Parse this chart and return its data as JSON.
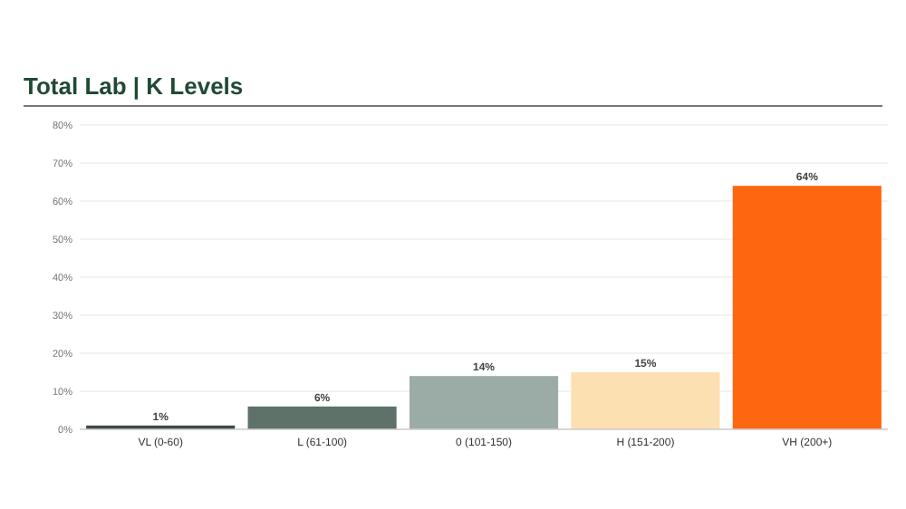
{
  "chart_data": {
    "type": "bar",
    "title": "Total Lab | K Levels",
    "categories": [
      "VL (0-60)",
      "L (61-100)",
      "0 (101-150)",
      "H (151-200)",
      "VH (200+)"
    ],
    "values": [
      1,
      6,
      14,
      15,
      64
    ],
    "colors": [
      "#3f4a45",
      "#5e7269",
      "#9aaca5",
      "#fde0b2",
      "#ff6610"
    ],
    "value_labels": [
      "1%",
      "6%",
      "14%",
      "15%",
      "64%"
    ],
    "ylim": [
      0,
      80
    ],
    "yticks": [
      {
        "value": 0,
        "label": "0%"
      },
      {
        "value": 10,
        "label": "10%"
      },
      {
        "value": 20,
        "label": "20%"
      },
      {
        "value": 30,
        "label": "30%"
      },
      {
        "value": 40,
        "label": "40%"
      },
      {
        "value": 50,
        "label": "50%"
      },
      {
        "value": 60,
        "label": "60%"
      },
      {
        "value": 70,
        "label": "70%"
      },
      {
        "value": 80,
        "label": "80%"
      }
    ],
    "grid": "y"
  }
}
